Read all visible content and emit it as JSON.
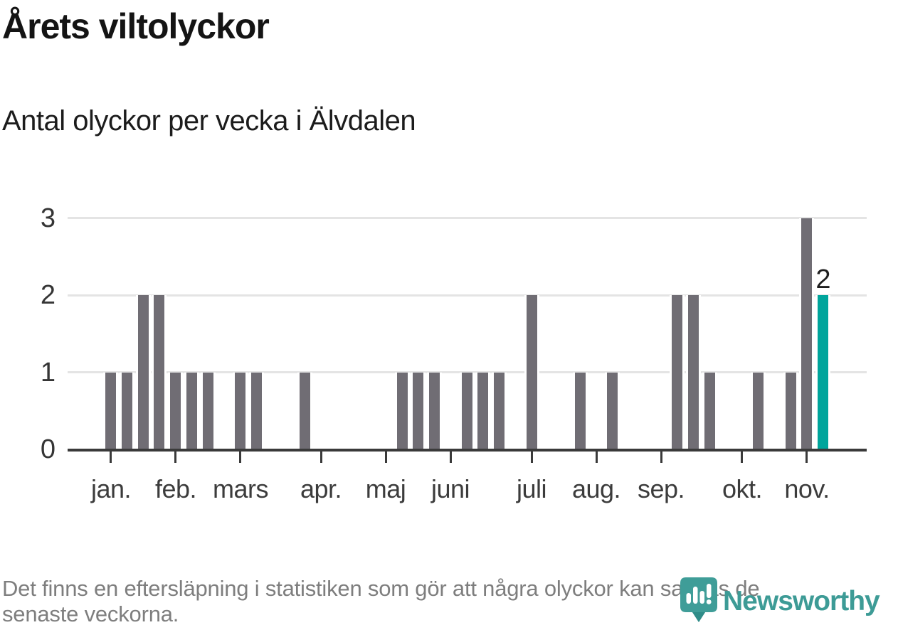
{
  "header": {
    "title": "Årets viltolyckor",
    "subtitle": "Antal olyckor per vecka i Älvdalen"
  },
  "footer": {
    "lines": [
      "Det finns en eftersläpning i statistiken som gör att några olyckor kan saknas de",
      "senaste veckorna."
    ]
  },
  "logo": {
    "text": "Newsworthy",
    "icon": "newsworthy-pin-barchart-icon",
    "text_color": "#3d9b96",
    "icon_color": "#3f9d98",
    "icon_tail_color": "#2f8c88"
  },
  "chart_data": {
    "type": "bar",
    "title": "Årets viltolyckor",
    "subtitle": "Antal olyckor per vecka i Älvdalen",
    "x_unit": "week",
    "values": [
      1,
      1,
      2,
      2,
      1,
      1,
      1,
      0,
      1,
      1,
      0,
      0,
      1,
      0,
      0,
      0,
      0,
      0,
      1,
      1,
      1,
      0,
      1,
      1,
      1,
      0,
      2,
      0,
      0,
      1,
      0,
      1,
      0,
      0,
      0,
      2,
      2,
      1,
      0,
      0,
      1,
      0,
      1,
      3,
      2
    ],
    "months": [
      {
        "label": "jan.",
        "week_index": 0
      },
      {
        "label": "feb.",
        "week_index": 4
      },
      {
        "label": "mars",
        "week_index": 8
      },
      {
        "label": "apr.",
        "week_index": 13
      },
      {
        "label": "maj",
        "week_index": 17
      },
      {
        "label": "juni",
        "week_index": 21
      },
      {
        "label": "juli",
        "week_index": 26
      },
      {
        "label": "aug.",
        "week_index": 30
      },
      {
        "label": "sep.",
        "week_index": 34
      },
      {
        "label": "okt.",
        "week_index": 39
      },
      {
        "label": "nov.",
        "week_index": 43
      }
    ],
    "yticks": [
      0,
      1,
      2,
      3
    ],
    "ylim": [
      0,
      3
    ],
    "grid": true,
    "legend": "none",
    "bar_color": "#706d74",
    "highlight": {
      "index": 44,
      "value": 2,
      "label": "2",
      "color": "#00a59c"
    }
  }
}
